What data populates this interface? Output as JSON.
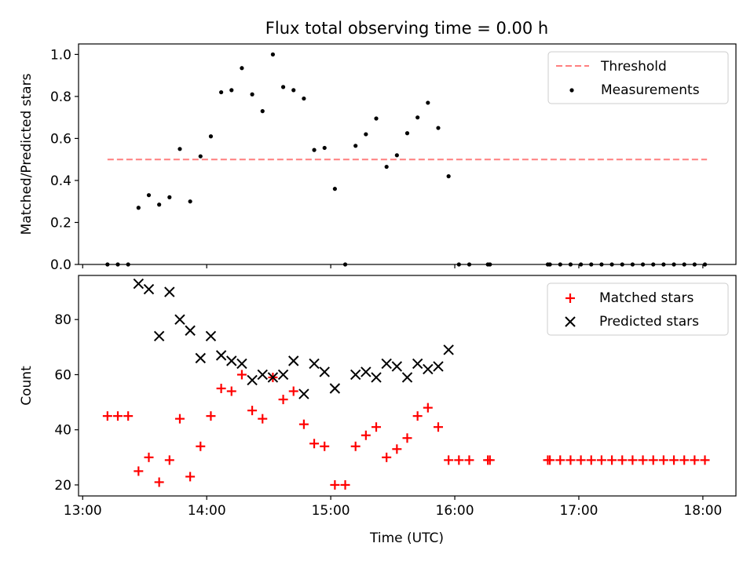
{
  "figure_title": "Flux total observing time = 0.00 h",
  "chart_data": [
    {
      "type": "scatter",
      "ylabel": "Matched/Predicted stars",
      "xlim": [
        "12:58",
        "18:16"
      ],
      "ylim": [
        0,
        1.05
      ],
      "yticks": [
        "0.0",
        "0.2",
        "0.4",
        "0.6",
        "0.8",
        "1.0"
      ],
      "legend_position": "top-right",
      "series": [
        {
          "name": "Threshold",
          "kind": "line",
          "style": "dashed",
          "color": "#ff7f7f",
          "points": [
            [
              "13:12",
              0.5
            ],
            [
              "18:02",
              0.5
            ]
          ]
        },
        {
          "name": "Measurements",
          "kind": "points",
          "color": "#000000",
          "points": [
            [
              "13:12",
              0.0
            ],
            [
              "13:17",
              0.0
            ],
            [
              "13:22",
              0.0
            ],
            [
              "13:27",
              0.27
            ],
            [
              "13:32",
              0.33
            ],
            [
              "13:37",
              0.285
            ],
            [
              "13:42",
              0.32
            ],
            [
              "13:47",
              0.55
            ],
            [
              "13:52",
              0.3
            ],
            [
              "13:57",
              0.515
            ],
            [
              "14:02",
              0.61
            ],
            [
              "14:07",
              0.82
            ],
            [
              "14:12",
              0.83
            ],
            [
              "14:17",
              0.935
            ],
            [
              "14:22",
              0.81
            ],
            [
              "14:27",
              0.73
            ],
            [
              "14:32",
              1.0
            ],
            [
              "14:37",
              0.845
            ],
            [
              "14:42",
              0.83
            ],
            [
              "14:47",
              0.79
            ],
            [
              "14:52",
              0.545
            ],
            [
              "14:57",
              0.555
            ],
            [
              "15:02",
              0.36
            ],
            [
              "15:07",
              0.0
            ],
            [
              "15:12",
              0.565
            ],
            [
              "15:17",
              0.62
            ],
            [
              "15:22",
              0.695
            ],
            [
              "15:27",
              0.465
            ],
            [
              "15:32",
              0.52
            ],
            [
              "15:37",
              0.625
            ],
            [
              "15:42",
              0.7
            ],
            [
              "15:47",
              0.77
            ],
            [
              "15:52",
              0.65
            ],
            [
              "15:57",
              0.42
            ],
            [
              "16:02",
              0.0
            ],
            [
              "16:07",
              0.0
            ],
            [
              "16:16",
              0.0
            ],
            [
              "16:17",
              0.0
            ],
            [
              "16:45",
              0.0
            ],
            [
              "16:46",
              0.0
            ],
            [
              "16:51",
              0.0
            ],
            [
              "16:56",
              0.0
            ],
            [
              "17:01",
              0.0
            ],
            [
              "17:06",
              0.0
            ],
            [
              "17:11",
              0.0
            ],
            [
              "17:16",
              0.0
            ],
            [
              "17:21",
              0.0
            ],
            [
              "17:26",
              0.0
            ],
            [
              "17:31",
              0.0
            ],
            [
              "17:36",
              0.0
            ],
            [
              "17:41",
              0.0
            ],
            [
              "17:46",
              0.0
            ],
            [
              "17:51",
              0.0
            ],
            [
              "17:56",
              0.0
            ],
            [
              "18:01",
              0.0
            ]
          ]
        }
      ]
    },
    {
      "type": "scatter",
      "xlabel": "Time (UTC)",
      "ylabel": "Count",
      "xlim": [
        "12:58",
        "18:16"
      ],
      "ylim": [
        16,
        96
      ],
      "xticks": [
        "13:00",
        "14:00",
        "15:00",
        "16:00",
        "17:00",
        "18:00"
      ],
      "yticks": [
        "20",
        "40",
        "60",
        "80"
      ],
      "legend_position": "top-right",
      "series": [
        {
          "name": "Matched stars",
          "kind": "plus",
          "color": "#ff0000",
          "points": [
            [
              "13:12",
              45
            ],
            [
              "13:17",
              45
            ],
            [
              "13:22",
              45
            ],
            [
              "13:27",
              25
            ],
            [
              "13:32",
              30
            ],
            [
              "13:37",
              21
            ],
            [
              "13:42",
              29
            ],
            [
              "13:47",
              44
            ],
            [
              "13:52",
              23
            ],
            [
              "13:57",
              34
            ],
            [
              "14:02",
              45
            ],
            [
              "14:07",
              55
            ],
            [
              "14:12",
              54
            ],
            [
              "14:17",
              60
            ],
            [
              "14:22",
              47
            ],
            [
              "14:27",
              44
            ],
            [
              "14:32",
              59
            ],
            [
              "14:37",
              51
            ],
            [
              "14:42",
              54
            ],
            [
              "14:47",
              42
            ],
            [
              "14:52",
              35
            ],
            [
              "14:57",
              34
            ],
            [
              "15:02",
              20
            ],
            [
              "15:07",
              20
            ],
            [
              "15:12",
              34
            ],
            [
              "15:17",
              38
            ],
            [
              "15:22",
              41
            ],
            [
              "15:27",
              30
            ],
            [
              "15:32",
              33
            ],
            [
              "15:37",
              37
            ],
            [
              "15:42",
              45
            ],
            [
              "15:47",
              48
            ],
            [
              "15:52",
              41
            ],
            [
              "15:57",
              29
            ],
            [
              "16:02",
              29
            ],
            [
              "16:07",
              29
            ],
            [
              "16:16",
              29
            ],
            [
              "16:17",
              29
            ],
            [
              "16:45",
              29
            ],
            [
              "16:46",
              29
            ],
            [
              "16:51",
              29
            ],
            [
              "16:56",
              29
            ],
            [
              "17:01",
              29
            ],
            [
              "17:06",
              29
            ],
            [
              "17:11",
              29
            ],
            [
              "17:16",
              29
            ],
            [
              "17:21",
              29
            ],
            [
              "17:26",
              29
            ],
            [
              "17:31",
              29
            ],
            [
              "17:36",
              29
            ],
            [
              "17:41",
              29
            ],
            [
              "17:46",
              29
            ],
            [
              "17:51",
              29
            ],
            [
              "17:56",
              29
            ],
            [
              "18:01",
              29
            ]
          ]
        },
        {
          "name": "Predicted stars",
          "kind": "x",
          "color": "#000000",
          "points": [
            [
              "13:27",
              93
            ],
            [
              "13:32",
              91
            ],
            [
              "13:37",
              74
            ],
            [
              "13:42",
              90
            ],
            [
              "13:47",
              80
            ],
            [
              "13:52",
              76
            ],
            [
              "13:57",
              66
            ],
            [
              "14:02",
              74
            ],
            [
              "14:07",
              67
            ],
            [
              "14:12",
              65
            ],
            [
              "14:17",
              64
            ],
            [
              "14:22",
              58
            ],
            [
              "14:27",
              60
            ],
            [
              "14:32",
              59
            ],
            [
              "14:37",
              60
            ],
            [
              "14:42",
              65
            ],
            [
              "14:47",
              53
            ],
            [
              "14:52",
              64
            ],
            [
              "14:57",
              61
            ],
            [
              "15:02",
              55
            ],
            [
              "15:12",
              60
            ],
            [
              "15:17",
              61
            ],
            [
              "15:22",
              59
            ],
            [
              "15:27",
              64
            ],
            [
              "15:32",
              63
            ],
            [
              "15:37",
              59
            ],
            [
              "15:42",
              64
            ],
            [
              "15:47",
              62
            ],
            [
              "15:52",
              63
            ],
            [
              "15:57",
              69
            ]
          ]
        }
      ]
    }
  ]
}
